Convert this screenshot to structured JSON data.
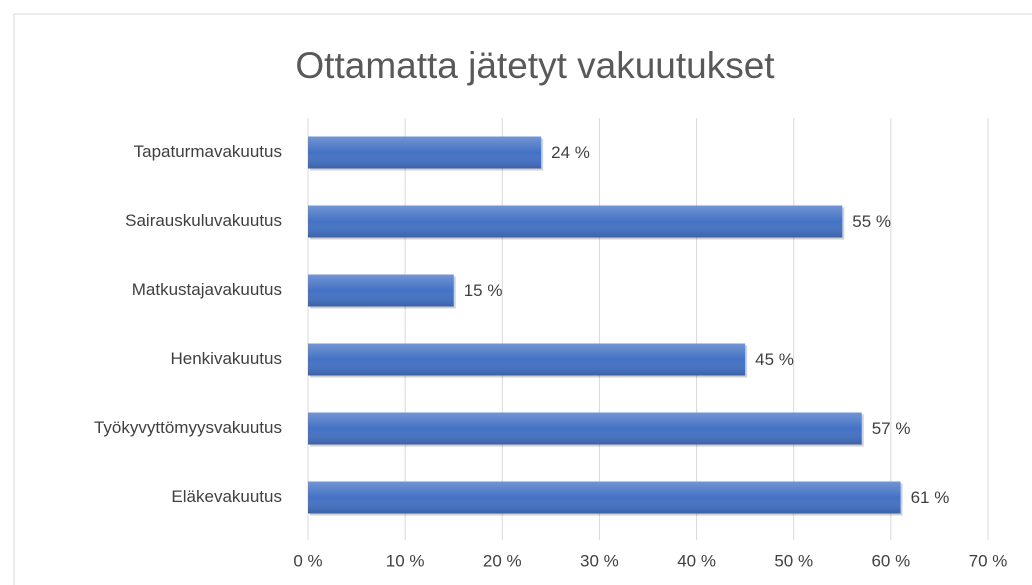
{
  "chart_data": {
    "type": "hbar",
    "title": "Ottamatta jätetyt vakuutukset",
    "categories": [
      "Tapaturmavakuutus",
      "Sairauskuluvakuutus",
      "Matkustajavakuutus",
      "Henkivakuutus",
      "Työkyvyttömyysvakuutus",
      "Eläkevakuutus"
    ],
    "values": [
      24,
      55,
      15,
      45,
      57,
      61
    ],
    "value_labels": [
      "24 %",
      "55 %",
      "15 %",
      "45 %",
      "57 %",
      "61 %"
    ],
    "color": "#4472c4",
    "xlim": [
      0,
      70
    ],
    "xticks": [
      {
        "value": 0,
        "label": "0 %"
      },
      {
        "value": 10,
        "label": "10 %"
      },
      {
        "value": 20,
        "label": "20 %"
      },
      {
        "value": 30,
        "label": "30 %"
      },
      {
        "value": 40,
        "label": "40 %"
      },
      {
        "value": 50,
        "label": "50 %"
      },
      {
        "value": 60,
        "label": "60 %"
      },
      {
        "value": 70,
        "label": "70 %"
      }
    ],
    "grid": true
  }
}
